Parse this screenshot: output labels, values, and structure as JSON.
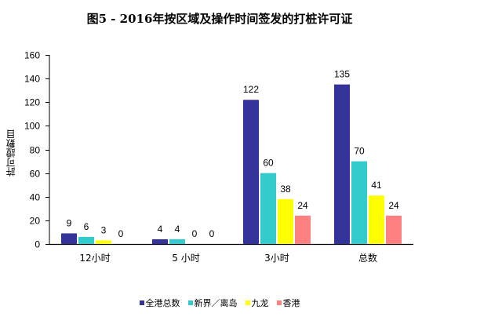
{
  "chart_data": {
    "type": "bar",
    "title": "图5 - 2016年按区域及操作时间签发的打桩许可证",
    "xlabel": "",
    "ylabel": "許可證數目",
    "ylim": [
      0,
      160
    ],
    "yticks": [
      0,
      20,
      40,
      60,
      80,
      100,
      120,
      140,
      160
    ],
    "categories": [
      "12小时",
      "5 小时",
      "3小时",
      "总数"
    ],
    "series": [
      {
        "name": "全港总数",
        "color": "#333399",
        "values": [
          9,
          4,
          122,
          135
        ]
      },
      {
        "name": "新界／离岛",
        "color": "#33CCCC",
        "values": [
          6,
          4,
          60,
          70
        ]
      },
      {
        "name": "九龙",
        "color": "#FFFF00",
        "values": [
          3,
          0,
          38,
          41
        ]
      },
      {
        "name": "香港",
        "color": "#FF8080",
        "values": [
          0,
          0,
          24,
          24
        ]
      }
    ],
    "grid": false,
    "legend_position": "bottom"
  }
}
